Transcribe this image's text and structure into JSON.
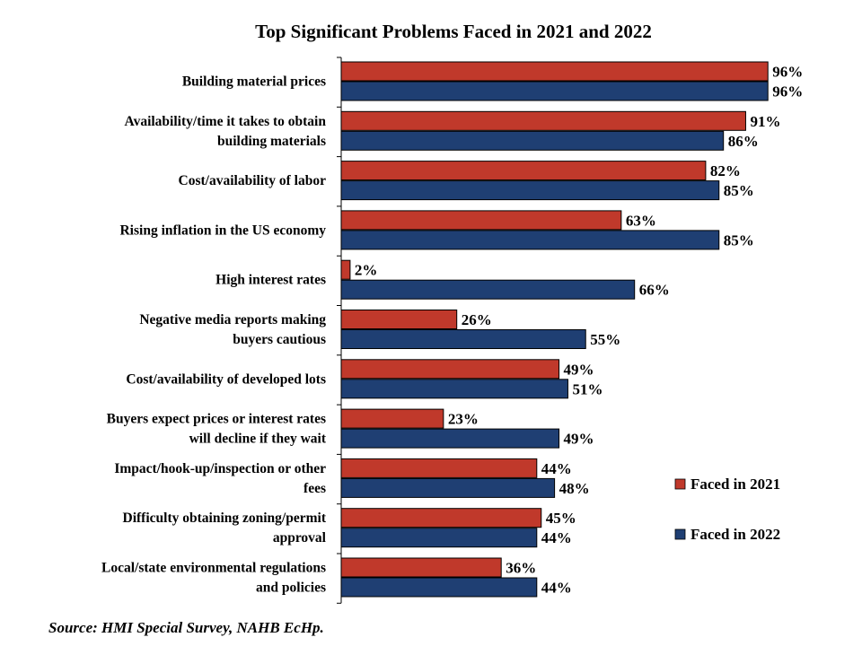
{
  "chart_data": {
    "type": "bar",
    "orientation": "horizontal",
    "title": "Top Significant Problems Faced in 2021 and 2022",
    "categories": [
      [
        "Building material prices"
      ],
      [
        "Availability/time it takes to obtain",
        "building materials"
      ],
      [
        "Cost/availability of labor"
      ],
      [
        "Rising inflation in the US economy"
      ],
      [
        "High interest rates"
      ],
      [
        "Negative media reports making",
        "buyers cautious"
      ],
      [
        "Cost/availability of developed lots"
      ],
      [
        "Buyers expect prices or interest rates",
        "will decline if they wait"
      ],
      [
        "Impact/hook-up/inspection or other",
        "fees"
      ],
      [
        "Difficulty obtaining zoning/permit",
        "approval"
      ],
      [
        "Local/state environmental regulations",
        "and policies"
      ]
    ],
    "series": [
      {
        "name": "Faced in 2021",
        "color": "#c0392b",
        "values": [
          96,
          91,
          82,
          63,
          2,
          26,
          49,
          23,
          44,
          45,
          36
        ],
        "labels": [
          "96%",
          "91%",
          "82%",
          "63%",
          "2%",
          "26%",
          "49%",
          "23%",
          "44%",
          "45%",
          "36%"
        ]
      },
      {
        "name": "Faced in 2022",
        "color": "#1f3f73",
        "values": [
          96,
          86,
          85,
          85,
          66,
          55,
          51,
          49,
          48,
          44,
          44
        ],
        "labels": [
          "96%",
          "86%",
          "85%",
          "85%",
          "66%",
          "55%",
          "51%",
          "49%",
          "48%",
          "44%",
          "44%"
        ]
      }
    ],
    "xlim": [
      0,
      100
    ],
    "grid": false,
    "legend_position": "right"
  },
  "source": "Source: HMI Special Survey, NAHB EcHp."
}
